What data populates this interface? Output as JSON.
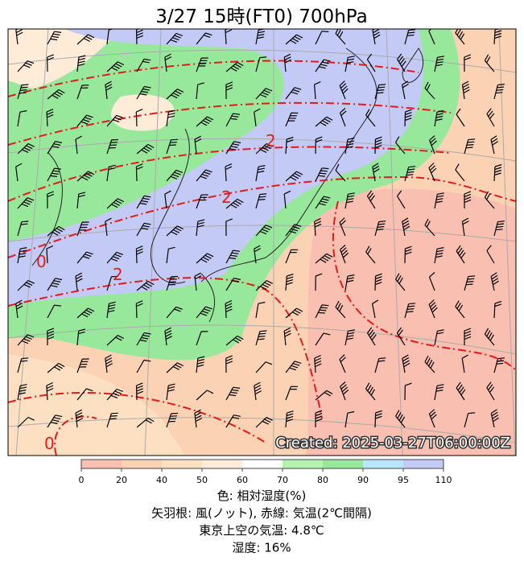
{
  "header": {
    "title": "3/27  15時(FT0)     700hPa"
  },
  "map": {
    "created": "Created: 2025-03-27T06:00:00Z",
    "contour_labels": [
      "2",
      "2",
      "0",
      "2",
      "0"
    ]
  },
  "colorbar": {
    "ticks": [
      "0",
      "20",
      "40",
      "50",
      "60",
      "70",
      "80",
      "90",
      "95",
      "110"
    ],
    "colors": [
      "#f9bfb0",
      "#fcd2b4",
      "#fde0c2",
      "#feecd8",
      "#ffffff",
      "#b4f2b0",
      "#98e89c",
      "#b8e6fb",
      "#c4caf6"
    ]
  },
  "captions": [
    "色: 相対湿度(%)",
    "矢羽根: 風(ノット),  赤線: 気温(2℃間隔)",
    "東京上空の気温: 4.8℃",
    "湿度: 16%"
  ]
}
